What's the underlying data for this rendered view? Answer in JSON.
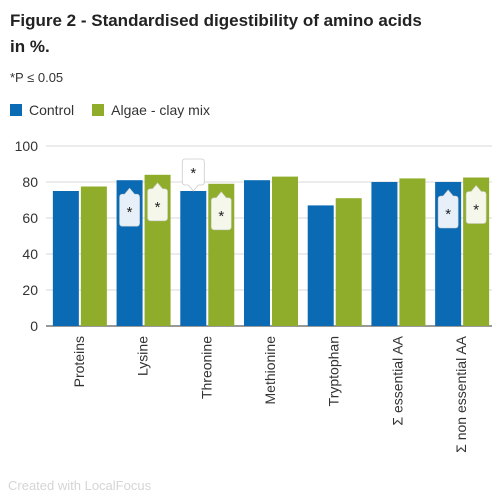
{
  "title": "Figure 2 - Standardised digestibility of amino acids in %.",
  "subtitle": "*P ≤ 0.05",
  "footer": "Created with LocalFocus",
  "colors": {
    "control": "#0a6ab3",
    "algae": "#8fad2b",
    "grid": "#d9d9d9",
    "axis": "#333333"
  },
  "chart_data": {
    "type": "bar",
    "categories": [
      "Proteins",
      "Lysine",
      "Threonine",
      "Methionine",
      "Tryptophan",
      "Σ essential AA",
      "Σ non essential AA"
    ],
    "series": [
      {
        "name": "Control",
        "color": "#0a6ab3",
        "values": [
          75,
          81,
          75,
          81,
          67,
          80,
          80
        ]
      },
      {
        "name": "Algae - clay mix",
        "color": "#8fad2b",
        "values": [
          77.5,
          84,
          79,
          83,
          71,
          82,
          82.5
        ]
      }
    ],
    "yticks": [
      0,
      20,
      40,
      60,
      80,
      100
    ],
    "ylim": [
      0,
      100
    ],
    "grid": true,
    "legend": "top-left",
    "annotations": [
      {
        "category": "Lysine",
        "series": "Control",
        "text": "*",
        "style": "inside"
      },
      {
        "category": "Lysine",
        "series": "Algae - clay mix",
        "text": "*",
        "style": "inside"
      },
      {
        "category": "Threonine",
        "series": "Control",
        "text": "*",
        "style": "above"
      },
      {
        "category": "Threonine",
        "series": "Algae - clay mix",
        "text": "*",
        "style": "inside"
      },
      {
        "category": "Σ non essential AA",
        "series": "Control",
        "text": "*",
        "style": "inside"
      },
      {
        "category": "Σ non essential AA",
        "series": "Algae - clay mix",
        "text": "*",
        "style": "inside"
      }
    ]
  }
}
